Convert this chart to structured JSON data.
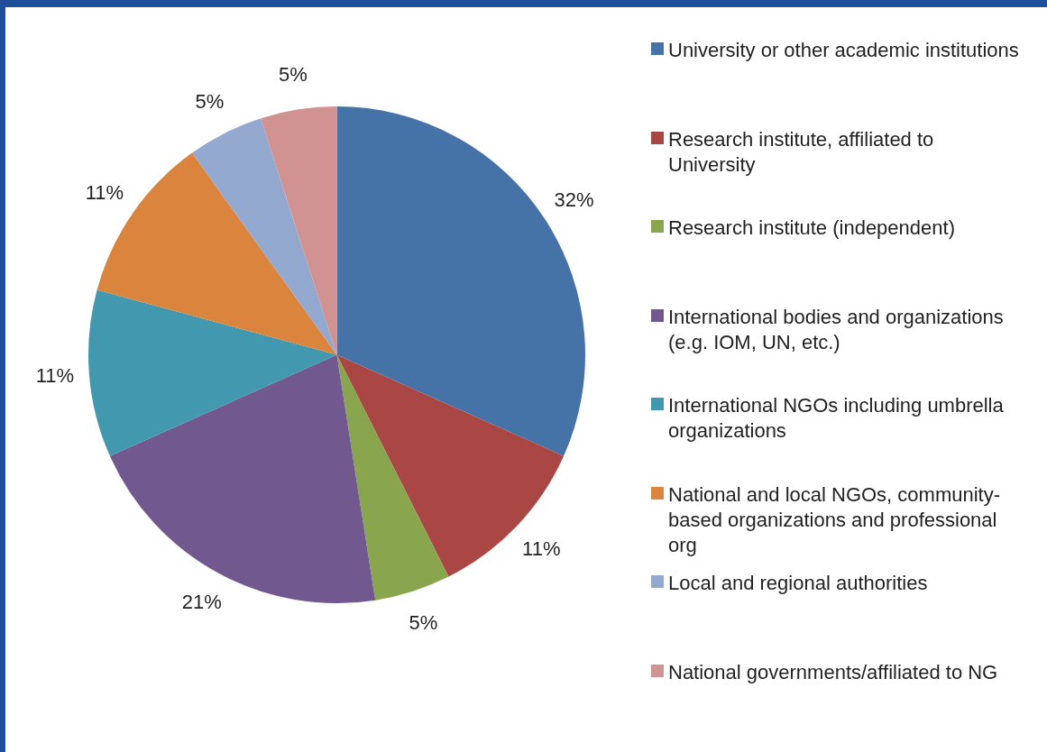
{
  "chart_data": {
    "type": "pie",
    "categories": [
      "University or other academic institutions",
      "Research institute, affiliated to University",
      "Research institute (independent)",
      "International bodies and organizations (e.g. IOM, UN, etc.)",
      "International NGOs including umbrella organizations",
      "National and local NGOs, community-based organizations and professional org",
      "Local and regional authorities",
      "National governments/affiliated to NG"
    ],
    "values": [
      32,
      11,
      5,
      21,
      11,
      11,
      5,
      5
    ],
    "value_labels": [
      "32%",
      "11%",
      "5%",
      "21%",
      "11%",
      "11%",
      "5%",
      "5%"
    ],
    "colors": [
      "#4572a7",
      "#aa4643",
      "#89a54e",
      "#71588f",
      "#4198af",
      "#db843d",
      "#93a9cf",
      "#d19392"
    ],
    "legend": "right"
  }
}
